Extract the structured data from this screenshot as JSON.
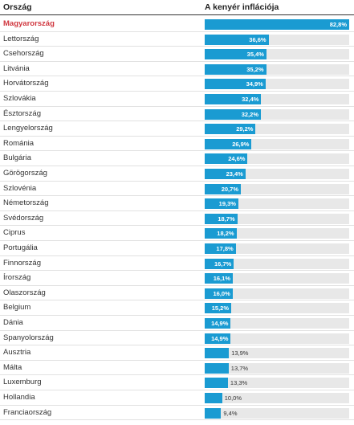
{
  "header": {
    "country_label": "Ország",
    "value_label": "A kenyér inflációja"
  },
  "colors": {
    "bar": "#1a9bd2",
    "track": "#e8e8e8",
    "highlight": "#d0373f"
  },
  "chart_data": {
    "type": "bar",
    "orientation": "horizontal",
    "xlim": [
      0,
      82.8
    ],
    "categories": [
      "Magyarország",
      "Lettország",
      "Csehország",
      "Litvánia",
      "Horvátország",
      "Szlovákia",
      "Észtország",
      "Lengyelország",
      "Románia",
      "Bulgária",
      "Görögország",
      "Szlovénia",
      "Németország",
      "Svédország",
      "Ciprus",
      "Portugália",
      "Finnország",
      "Írország",
      "Olaszország",
      "Belgium",
      "Dánia",
      "Spanyolország",
      "Ausztria",
      "Málta",
      "Luxemburg",
      "Hollandia",
      "Franciaország"
    ],
    "values": [
      82.8,
      36.6,
      35.4,
      35.2,
      34.9,
      32.4,
      32.2,
      29.2,
      26.9,
      24.6,
      23.4,
      20.7,
      19.3,
      18.7,
      18.2,
      17.8,
      16.7,
      16.1,
      16.0,
      15.2,
      14.9,
      14.9,
      13.9,
      13.7,
      13.3,
      10.0,
      9.4
    ],
    "labels": [
      "82,8%",
      "36,6%",
      "35,4%",
      "35,2%",
      "34,9%",
      "32,4%",
      "32,2%",
      "29,2%",
      "26,9%",
      "24,6%",
      "23,4%",
      "20,7%",
      "19,3%",
      "18,7%",
      "18,2%",
      "17,8%",
      "16,7%",
      "16,1%",
      "16,0%",
      "15,2%",
      "14,9%",
      "14,9%",
      "13,9%",
      "13,7%",
      "13,3%",
      "10,0%",
      "9,4%"
    ],
    "highlight": "Magyarország"
  }
}
